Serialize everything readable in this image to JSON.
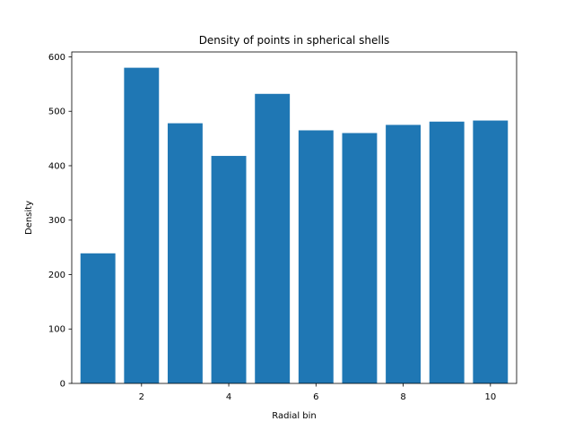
{
  "chart_data": {
    "type": "bar",
    "title": "Density of points in spherical shells",
    "xlabel": "Radial bin",
    "ylabel": "Density",
    "x": [
      1,
      2,
      3,
      4,
      5,
      6,
      7,
      8,
      9,
      10
    ],
    "values": [
      239,
      580,
      478,
      418,
      532,
      465,
      460,
      475,
      481,
      483
    ],
    "xlim": [
      0.4,
      10.6
    ],
    "ylim": [
      0,
      609
    ],
    "xticks": [
      2,
      4,
      6,
      8,
      10
    ],
    "yticks": [
      0,
      100,
      200,
      300,
      400,
      500,
      600
    ],
    "bar_color": "#1f77b4",
    "grid": false
  }
}
